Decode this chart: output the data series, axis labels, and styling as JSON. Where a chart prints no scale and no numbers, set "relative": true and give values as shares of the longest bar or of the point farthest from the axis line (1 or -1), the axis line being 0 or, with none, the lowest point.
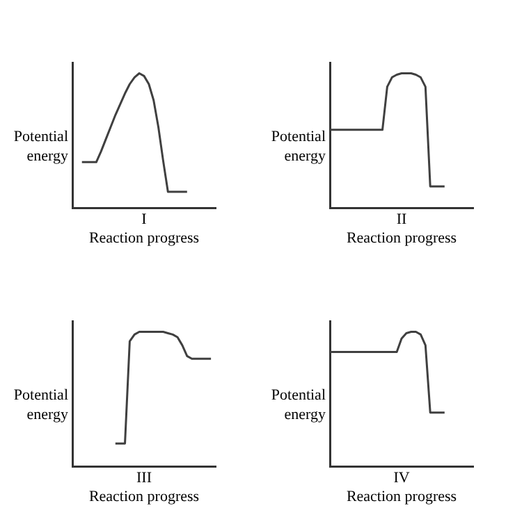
{
  "chart_data": [
    {
      "type": "line",
      "xlabel": "Reaction progress",
      "ylabel": "Potential energy",
      "annotations": [
        "I"
      ],
      "relative": true,
      "categories": [
        null,
        null,
        null,
        null,
        null,
        null,
        null,
        null,
        null,
        null,
        null,
        null,
        null,
        null,
        null,
        null,
        null,
        null,
        null,
        null,
        null,
        null,
        null,
        null,
        null,
        null,
        null,
        null,
        null,
        null,
        null
      ],
      "series": [
        {
          "color": "#404040",
          "values": [
            null,
            null,
            0.34,
            0.34,
            0.34,
            0.34,
            0.42,
            0.51,
            0.6,
            0.69,
            0.77,
            0.85,
            0.92,
            0.97,
            1,
            0.98,
            0.92,
            0.8,
            0.6,
            0.35,
            0.12,
            0.12,
            0.12,
            0.12,
            0.12,
            null,
            null,
            null,
            null,
            null,
            null
          ]
        }
      ]
    },
    {
      "type": "line",
      "xlabel": "Reaction progress",
      "ylabel": "Potential energy",
      "annotations": [
        "II"
      ],
      "relative": true,
      "categories": [
        null,
        null,
        null,
        null,
        null,
        null,
        null,
        null,
        null,
        null,
        null,
        null,
        null,
        null,
        null,
        null,
        null,
        null,
        null,
        null,
        null,
        null,
        null,
        null,
        null,
        null,
        null,
        null,
        null,
        null,
        null
      ],
      "series": [
        {
          "color": "#404040",
          "values": [
            0.58,
            0.58,
            0.58,
            0.58,
            0.58,
            0.58,
            0.58,
            0.58,
            0.58,
            0.58,
            0.58,
            0.58,
            0.9,
            0.97,
            0.99,
            1,
            1,
            1,
            0.99,
            0.97,
            0.9,
            0.16,
            0.16,
            0.16,
            0.16,
            null,
            null,
            null,
            null,
            null,
            null
          ]
        }
      ]
    },
    {
      "type": "line",
      "xlabel": "Reaction progress",
      "ylabel": "Potential energy",
      "annotations": [
        "III"
      ],
      "relative": true,
      "categories": [
        null,
        null,
        null,
        null,
        null,
        null,
        null,
        null,
        null,
        null,
        null,
        null,
        null,
        null,
        null,
        null,
        null,
        null,
        null,
        null,
        null,
        null,
        null,
        null,
        null,
        null,
        null,
        null,
        null,
        null,
        null
      ],
      "series": [
        {
          "color": "#404040",
          "values": [
            null,
            null,
            null,
            null,
            null,
            null,
            null,
            null,
            null,
            0.17,
            0.17,
            0.17,
            0.93,
            0.98,
            1,
            1,
            1,
            1,
            1,
            1,
            0.99,
            0.98,
            0.96,
            0.9,
            0.82,
            0.8,
            0.8,
            0.8,
            0.8,
            0.8,
            null
          ]
        }
      ]
    },
    {
      "type": "line",
      "xlabel": "Reaction progress",
      "ylabel": "Potential energy",
      "annotations": [
        "IV"
      ],
      "relative": true,
      "categories": [
        null,
        null,
        null,
        null,
        null,
        null,
        null,
        null,
        null,
        null,
        null,
        null,
        null,
        null,
        null,
        null,
        null,
        null,
        null,
        null,
        null,
        null,
        null,
        null,
        null,
        null,
        null,
        null,
        null,
        null,
        null
      ],
      "series": [
        {
          "color": "#404040",
          "values": [
            0.85,
            0.85,
            0.85,
            0.85,
            0.85,
            0.85,
            0.85,
            0.85,
            0.85,
            0.85,
            0.85,
            0.85,
            0.85,
            0.85,
            0.85,
            0.95,
            0.99,
            1,
            1,
            0.98,
            0.9,
            0.4,
            0.4,
            0.4,
            0.4,
            null,
            null,
            null,
            null,
            null,
            null
          ]
        }
      ]
    }
  ]
}
